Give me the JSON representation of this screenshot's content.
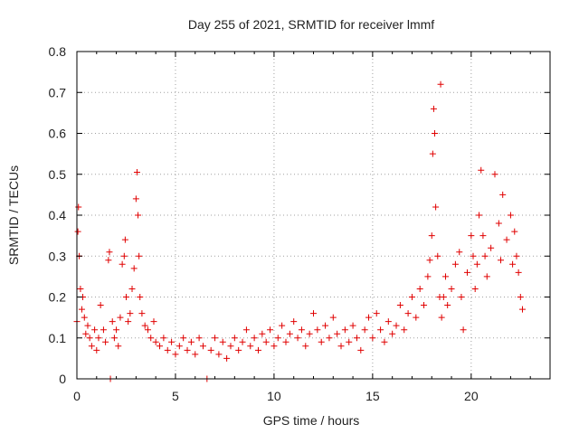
{
  "colors": {
    "marker": "#e00000",
    "grid": "#a0a0a0",
    "frame": "#000000"
  },
  "chart_data": {
    "type": "scatter",
    "title": "Day 255 of 2021, SRMTID for receiver lmmf",
    "xlabel": "GPS time / hours",
    "ylabel": "SRMTID / TECUs",
    "xlim": [
      0,
      24
    ],
    "ylim": [
      0,
      0.8
    ],
    "xticks": [
      0,
      5,
      10,
      15,
      20
    ],
    "xtick_labels": [
      "0",
      "5",
      "10",
      "15",
      "20"
    ],
    "yticks": [
      0,
      0.1,
      0.2,
      0.3,
      0.4,
      0.5,
      0.6,
      0.7,
      0.8
    ],
    "ytick_labels": [
      "0",
      "0.1",
      "0.2",
      "0.3",
      "0.4",
      "0.5",
      "0.6",
      "0.7",
      "0.8"
    ],
    "grid": true,
    "marker": "+",
    "series": [
      {
        "name": "SRMTID",
        "x": [
          0.0,
          0.05,
          0.08,
          0.12,
          0.18,
          0.25,
          0.3,
          0.38,
          0.45,
          0.55,
          0.65,
          0.75,
          0.9,
          1.0,
          1.1,
          1.2,
          1.35,
          1.45,
          1.6,
          1.65,
          1.7,
          1.8,
          1.9,
          2.0,
          2.1,
          2.2,
          2.3,
          2.4,
          2.45,
          2.5,
          2.6,
          2.7,
          2.8,
          2.9,
          3.0,
          3.05,
          3.1,
          3.15,
          3.2,
          3.3,
          3.45,
          3.6,
          3.75,
          3.9,
          4.0,
          4.2,
          4.4,
          4.6,
          4.8,
          5.0,
          5.2,
          5.4,
          5.6,
          5.8,
          6.0,
          6.2,
          6.4,
          6.6,
          6.8,
          7.0,
          7.2,
          7.4,
          7.6,
          7.8,
          8.0,
          8.2,
          8.4,
          8.6,
          8.8,
          9.0,
          9.2,
          9.4,
          9.6,
          9.8,
          10.0,
          10.2,
          10.4,
          10.6,
          10.8,
          11.0,
          11.2,
          11.4,
          11.6,
          11.8,
          12.0,
          12.2,
          12.4,
          12.6,
          12.8,
          13.0,
          13.2,
          13.4,
          13.6,
          13.8,
          14.0,
          14.2,
          14.4,
          14.6,
          14.8,
          15.0,
          15.2,
          15.4,
          15.6,
          15.8,
          16.0,
          16.2,
          16.4,
          16.6,
          16.8,
          17.0,
          17.2,
          17.4,
          17.6,
          17.8,
          17.9,
          18.0,
          18.05,
          18.1,
          18.15,
          18.2,
          18.3,
          18.4,
          18.45,
          18.5,
          18.6,
          18.7,
          18.8,
          19.0,
          19.2,
          19.4,
          19.5,
          19.6,
          19.8,
          20.0,
          20.1,
          20.2,
          20.3,
          20.4,
          20.5,
          20.6,
          20.7,
          20.8,
          21.0,
          21.2,
          21.4,
          21.5,
          21.6,
          21.8,
          22.0,
          22.1,
          22.2,
          22.3,
          22.4,
          22.5,
          22.6
        ],
        "y": [
          0.14,
          0.36,
          0.42,
          0.3,
          0.22,
          0.17,
          0.2,
          0.15,
          0.11,
          0.13,
          0.1,
          0.08,
          0.12,
          0.07,
          0.1,
          0.18,
          0.12,
          0.09,
          0.29,
          0.31,
          0.0,
          0.14,
          0.1,
          0.12,
          0.08,
          0.15,
          0.28,
          0.3,
          0.34,
          0.2,
          0.14,
          0.16,
          0.22,
          0.27,
          0.44,
          0.505,
          0.4,
          0.3,
          0.2,
          0.16,
          0.13,
          0.12,
          0.1,
          0.14,
          0.09,
          0.08,
          0.1,
          0.07,
          0.09,
          0.06,
          0.08,
          0.1,
          0.07,
          0.09,
          0.06,
          0.1,
          0.08,
          0.0,
          0.07,
          0.1,
          0.06,
          0.09,
          0.05,
          0.08,
          0.1,
          0.07,
          0.09,
          0.12,
          0.08,
          0.1,
          0.07,
          0.11,
          0.09,
          0.12,
          0.08,
          0.1,
          0.13,
          0.09,
          0.11,
          0.14,
          0.1,
          0.12,
          0.08,
          0.11,
          0.16,
          0.12,
          0.09,
          0.13,
          0.1,
          0.15,
          0.11,
          0.08,
          0.12,
          0.09,
          0.13,
          0.1,
          0.07,
          0.12,
          0.15,
          0.1,
          0.16,
          0.12,
          0.09,
          0.14,
          0.11,
          0.13,
          0.18,
          0.12,
          0.16,
          0.2,
          0.15,
          0.22,
          0.18,
          0.25,
          0.29,
          0.35,
          0.55,
          0.66,
          0.6,
          0.42,
          0.3,
          0.2,
          0.72,
          0.15,
          0.2,
          0.25,
          0.18,
          0.22,
          0.28,
          0.31,
          0.2,
          0.12,
          0.26,
          0.35,
          0.3,
          0.22,
          0.28,
          0.4,
          0.51,
          0.35,
          0.3,
          0.25,
          0.32,
          0.5,
          0.38,
          0.29,
          0.45,
          0.34,
          0.4,
          0.28,
          0.36,
          0.3,
          0.26,
          0.2,
          0.17
        ]
      }
    ]
  }
}
